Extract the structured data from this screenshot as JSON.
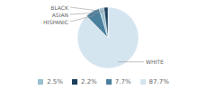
{
  "chart_data": {
    "type": "pie",
    "categories": [
      "WHITE",
      "HISPANIC",
      "ASIAN",
      "BLACK"
    ],
    "values": [
      87.7,
      7.7,
      2.5,
      2.2
    ],
    "value_labels": [
      "87.7%",
      "7.7%",
      "2.5%",
      "2.2%"
    ],
    "colors": [
      "#d5e5f0",
      "#4a7f9e",
      "#9abfcf",
      "#1a3f5c"
    ],
    "legend": "bottom"
  }
}
